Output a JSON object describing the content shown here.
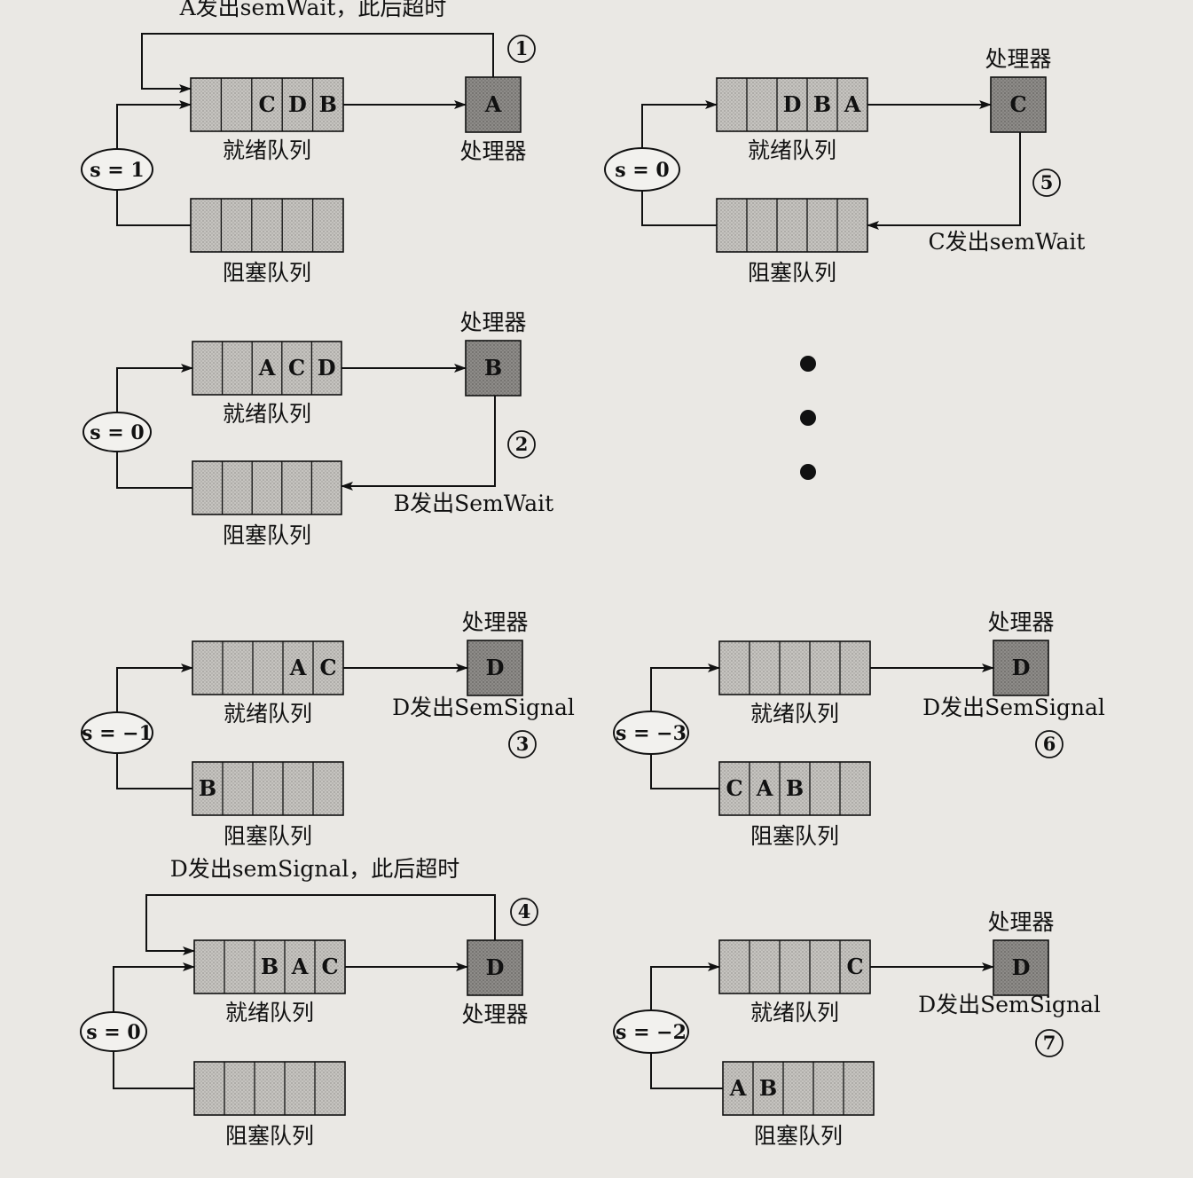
{
  "labels": {
    "ready": "就绪队列",
    "blocked": "阻塞队列",
    "processor": "处理器"
  },
  "panels": [
    {
      "id": 1,
      "step": "1",
      "s": "s = 1",
      "ready_cells": [
        "",
        "",
        "C",
        "D",
        "B"
      ],
      "blocked_cells": [
        "",
        "",
        "",
        "",
        ""
      ],
      "cpu": "A",
      "cpu_label_position": "below",
      "action": "A发出semWait，此后超时",
      "action_kind": "timeout-loop"
    },
    {
      "id": 2,
      "step": "2",
      "s": "s = 0",
      "ready_cells": [
        "",
        "",
        "A",
        "C",
        "D"
      ],
      "blocked_cells": [
        "",
        "",
        "",
        "",
        ""
      ],
      "cpu": "B",
      "cpu_label_position": "above",
      "action": "B发出SemWait",
      "action_kind": "to-blocked"
    },
    {
      "id": 3,
      "step": "3",
      "s": "s = −1",
      "ready_cells": [
        "",
        "",
        "",
        "A",
        "C"
      ],
      "blocked_cells": [
        "B",
        "",
        "",
        "",
        ""
      ],
      "cpu": "D",
      "cpu_label_position": "above",
      "action": "D发出SemSignal",
      "action_kind": "signal"
    },
    {
      "id": 4,
      "step": "4",
      "s": "s = 0",
      "ready_cells": [
        "",
        "",
        "B",
        "A",
        "C"
      ],
      "blocked_cells": [
        "",
        "",
        "",
        "",
        ""
      ],
      "cpu": "D",
      "cpu_label_position": "below",
      "action": "D发出semSignal，此后超时",
      "action_kind": "timeout-loop"
    },
    {
      "id": 5,
      "step": "5",
      "s": "s = 0",
      "ready_cells": [
        "",
        "",
        "D",
        "B",
        "A"
      ],
      "blocked_cells": [
        "",
        "",
        "",
        "",
        ""
      ],
      "cpu": "C",
      "cpu_label_position": "above",
      "action": "C发出semWait",
      "action_kind": "to-blocked"
    },
    {
      "id": 6,
      "step": "6",
      "s": "s = −3",
      "ready_cells": [
        "",
        "",
        "",
        "",
        ""
      ],
      "blocked_cells": [
        "C",
        "A",
        "B",
        "",
        ""
      ],
      "cpu": "D",
      "cpu_label_position": "above",
      "action": "D发出SemSignal",
      "action_kind": "signal"
    },
    {
      "id": 7,
      "step": "7",
      "s": "s = −2",
      "ready_cells": [
        "",
        "",
        "",
        "",
        "C"
      ],
      "blocked_cells": [
        "A",
        "B",
        "",
        "",
        ""
      ],
      "cpu": "D",
      "cpu_label_position": "above",
      "action": "D发出SemSignal",
      "action_kind": "signal"
    }
  ],
  "ellipsis": "•••",
  "colors": {
    "queue_fill": "#c9c7c3",
    "cpu_fill": "#8e8c89",
    "line": "#111111",
    "background": "#eae8e4"
  }
}
